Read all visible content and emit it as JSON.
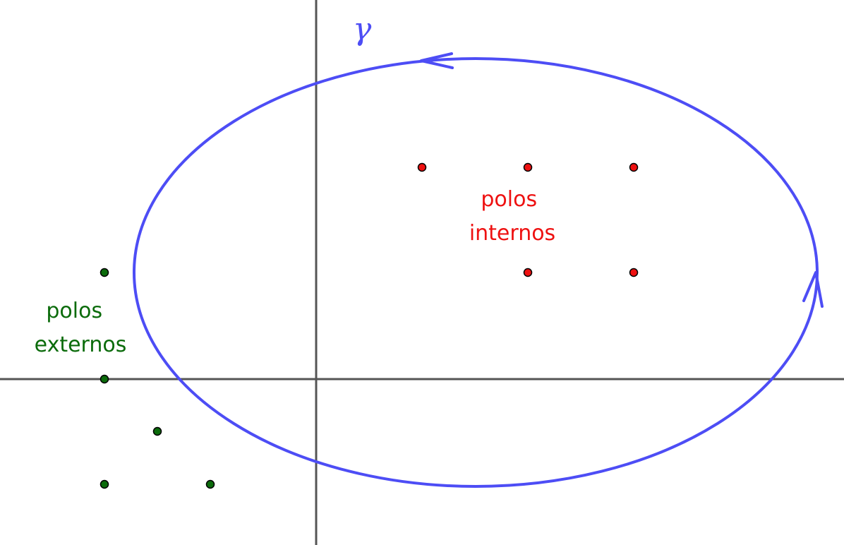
{
  "diagram": {
    "curve_label": "γ",
    "inner_label": [
      "polos",
      "internos"
    ],
    "outer_label": [
      "polos",
      "externos"
    ],
    "inner_pole_count": 5,
    "outer_pole_count": 5,
    "colors": {
      "axes": "#555555",
      "curve": "#4d4df5",
      "inner": "#ee1111",
      "inner_text": "#ee1111",
      "outer": "#0b6b0b",
      "outer_text": "#0b6b0b",
      "dot_stroke": "#000000"
    }
  }
}
